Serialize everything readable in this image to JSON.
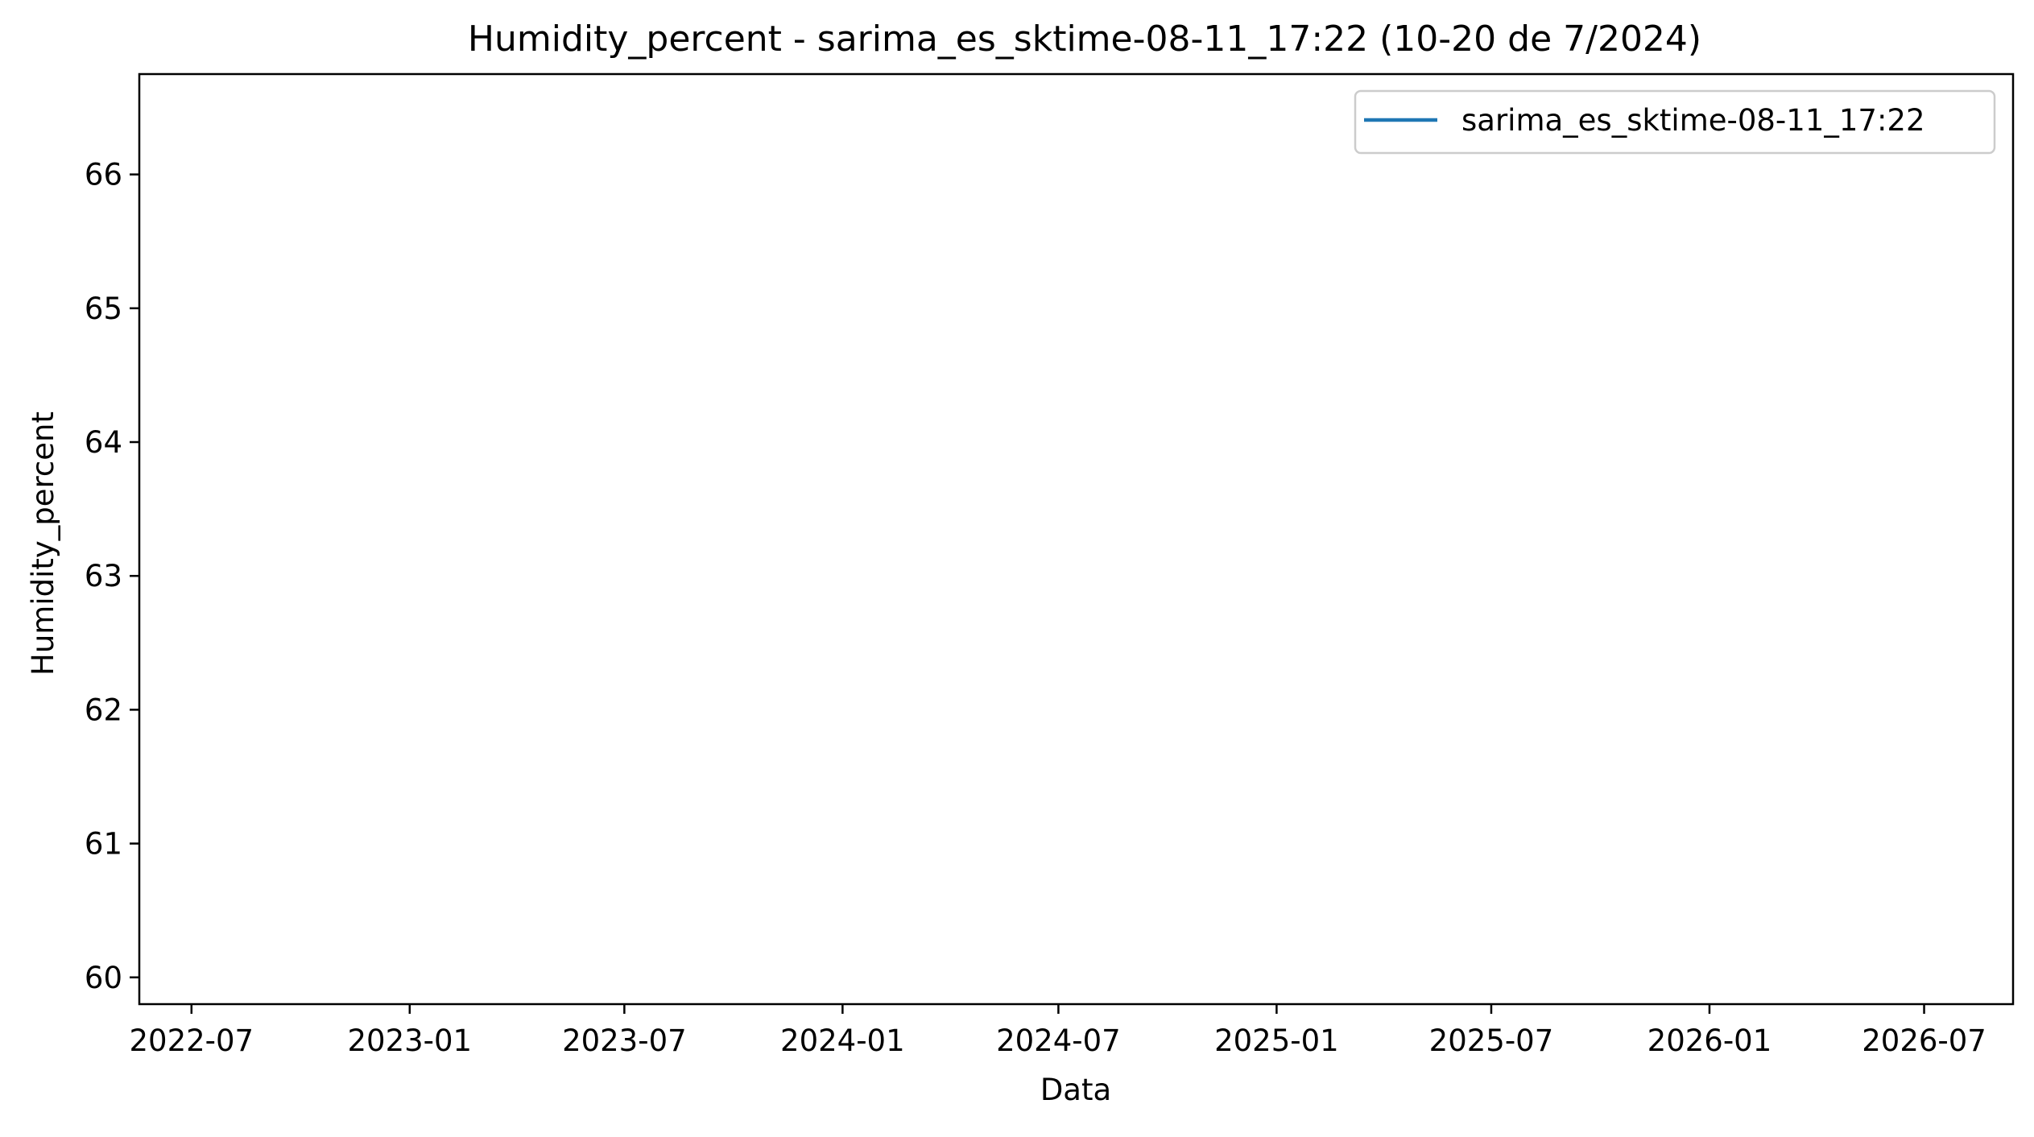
{
  "chart_data": {
    "type": "line",
    "title": "Humidity_percent - sarima_es_sktime-08-11_17:22 (10-20 de 7/2024)",
    "xlabel": "Data",
    "ylabel": "Humidity_percent",
    "x_scale": "date",
    "xlim": [
      "2022-05-18",
      "2026-09-14"
    ],
    "ylim": [
      59.8,
      66.75
    ],
    "x_ticks": [
      "2022-07",
      "2023-01",
      "2023-07",
      "2024-01",
      "2024-07",
      "2025-01",
      "2025-07",
      "2026-01",
      "2026-07"
    ],
    "y_ticks": [
      60,
      61,
      62,
      63,
      64,
      65,
      66
    ],
    "grid": false,
    "legend_position": "top-right",
    "series": [
      {
        "name": "sarima_es_sktime-08-11_17:22",
        "color": "#1f77b4",
        "x": [],
        "y": []
      }
    ]
  }
}
